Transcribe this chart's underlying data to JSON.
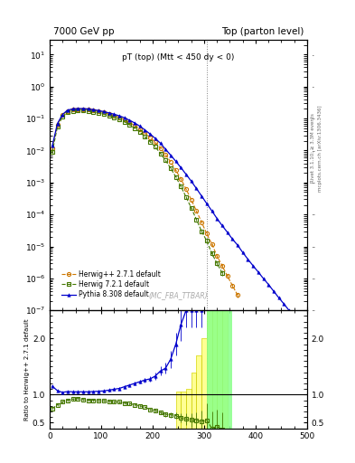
{
  "title_left": "7000 GeV pp",
  "title_right": "Top (parton level)",
  "main_title": "pT (top) (Mtt < 450 dy < 0)",
  "watermark": "(MC_FBA_TTBAR)",
  "right_label1": "Rivet 3.1.10; ≥ 3.3M events",
  "right_label2": "mcplots.cern.ch [arXiv:1306.3436]",
  "ylabel_ratio": "Ratio to Herwig++ 2.7.1 default",
  "xlim": [
    0,
    500
  ],
  "ylim_main": [
    1e-07,
    30
  ],
  "ylim_ratio": [
    0.4,
    2.5
  ],
  "ratio_yticks": [
    0.5,
    1.0,
    2.0
  ],
  "herwig1_x": [
    5,
    15,
    25,
    35,
    45,
    55,
    65,
    75,
    85,
    95,
    105,
    115,
    125,
    135,
    145,
    155,
    165,
    175,
    185,
    195,
    205,
    215,
    225,
    235,
    245,
    255,
    265,
    275,
    285,
    295,
    305,
    315,
    325,
    335,
    345,
    355,
    365
  ],
  "herwig1_y": [
    0.012,
    0.065,
    0.13,
    0.175,
    0.19,
    0.195,
    0.195,
    0.19,
    0.18,
    0.168,
    0.155,
    0.14,
    0.125,
    0.11,
    0.093,
    0.076,
    0.061,
    0.047,
    0.035,
    0.026,
    0.018,
    0.012,
    0.0075,
    0.0044,
    0.0024,
    0.00128,
    0.00062,
    0.00029,
    0.00013,
    5.8e-05,
    2.5e-05,
    1.2e-05,
    5e-06,
    2.5e-06,
    1.2e-06,
    6e-07,
    3e-07
  ],
  "herwig1_yerr": [
    0.001,
    0.002,
    0.003,
    0.003,
    0.003,
    0.003,
    0.003,
    0.003,
    0.003,
    0.002,
    0.002,
    0.002,
    0.002,
    0.002,
    0.001,
    0.001,
    0.001,
    0.0008,
    0.0005,
    0.0004,
    0.0003,
    0.0002,
    0.00015,
    0.0001,
    6e-05,
    4e-05,
    2e-05,
    1e-05,
    5e-06,
    2.5e-06,
    2e-06,
    1e-06,
    5e-07,
    3e-07,
    1.5e-07,
    8e-08,
    4e-08
  ],
  "herwig2_x": [
    5,
    15,
    25,
    35,
    45,
    55,
    65,
    75,
    85,
    95,
    105,
    115,
    125,
    135,
    145,
    155,
    165,
    175,
    185,
    195,
    205,
    215,
    225,
    235,
    245,
    255,
    265,
    275,
    285,
    295,
    305,
    315,
    325,
    335
  ],
  "herwig2_y": [
    0.009,
    0.055,
    0.115,
    0.16,
    0.175,
    0.18,
    0.178,
    0.172,
    0.162,
    0.15,
    0.138,
    0.123,
    0.109,
    0.095,
    0.079,
    0.064,
    0.05,
    0.038,
    0.027,
    0.019,
    0.013,
    0.0082,
    0.0049,
    0.0028,
    0.0015,
    0.00075,
    0.00035,
    0.00016,
    7e-05,
    3e-05,
    1.5e-05,
    6e-06,
    3e-06,
    1.5e-06
  ],
  "herwig2_yerr": [
    0.001,
    0.002,
    0.003,
    0.003,
    0.003,
    0.003,
    0.003,
    0.003,
    0.003,
    0.002,
    0.002,
    0.002,
    0.002,
    0.002,
    0.001,
    0.001,
    0.001,
    0.0008,
    0.0005,
    0.0004,
    0.0003,
    0.0002,
    0.00015,
    0.0001,
    6e-05,
    4e-05,
    2e-05,
    1e-05,
    5e-06,
    2.5e-06,
    2e-06,
    1e-06,
    5e-07,
    3e-07
  ],
  "pythia_x": [
    5,
    15,
    25,
    35,
    45,
    55,
    65,
    75,
    85,
    95,
    105,
    115,
    125,
    135,
    145,
    155,
    165,
    175,
    185,
    195,
    205,
    215,
    225,
    235,
    245,
    255,
    265,
    275,
    285,
    295,
    305,
    315,
    325,
    335,
    345,
    355,
    365,
    375,
    385,
    395,
    405,
    415,
    425,
    435,
    445,
    455,
    465,
    475,
    485,
    495
  ],
  "pythia_y": [
    0.014,
    0.07,
    0.135,
    0.185,
    0.2,
    0.205,
    0.205,
    0.2,
    0.19,
    0.178,
    0.165,
    0.151,
    0.137,
    0.122,
    0.106,
    0.089,
    0.073,
    0.058,
    0.044,
    0.033,
    0.024,
    0.017,
    0.011,
    0.0072,
    0.0046,
    0.0029,
    0.0018,
    0.0011,
    0.00065,
    0.00038,
    0.00022,
    0.00013,
    7.5e-05,
    4.5e-05,
    2.8e-05,
    1.7e-05,
    1.1e-05,
    6.5e-06,
    4e-06,
    2.5e-06,
    1.6e-06,
    1e-06,
    6.5e-07,
    4e-07,
    2.5e-07,
    1.6e-07,
    1e-07,
    6e-08,
    3e-08,
    1e-08
  ],
  "pythia_yerr": [
    0.001,
    0.002,
    0.003,
    0.003,
    0.003,
    0.003,
    0.003,
    0.003,
    0.003,
    0.002,
    0.002,
    0.002,
    0.002,
    0.002,
    0.001,
    0.001,
    0.001,
    0.0008,
    0.0005,
    0.0004,
    0.0003,
    0.0002,
    0.00015,
    0.0001,
    6e-05,
    4e-05,
    2e-05,
    1e-05,
    5e-06,
    2.5e-06,
    2e-06,
    1e-06,
    5e-07,
    3e-07,
    2e-07,
    1.5e-07,
    1e-07,
    8e-08,
    6e-08,
    5e-08,
    4e-08,
    3e-08,
    2.5e-08,
    2e-08,
    1.5e-08,
    1.2e-08,
    1e-08,
    8e-09,
    6e-09,
    5e-09
  ],
  "ratio_herwig2_x": [
    5,
    15,
    25,
    35,
    45,
    55,
    65,
    75,
    85,
    95,
    105,
    115,
    125,
    135,
    145,
    155,
    165,
    175,
    185,
    195,
    205,
    215,
    225,
    235,
    245,
    255,
    265,
    275,
    285,
    295,
    305,
    315,
    325,
    335
  ],
  "ratio_herwig2_y": [
    0.75,
    0.82,
    0.87,
    0.9,
    0.92,
    0.93,
    0.91,
    0.9,
    0.9,
    0.89,
    0.89,
    0.88,
    0.87,
    0.87,
    0.85,
    0.84,
    0.82,
    0.8,
    0.78,
    0.73,
    0.72,
    0.68,
    0.65,
    0.64,
    0.625,
    0.585,
    0.565,
    0.55,
    0.54,
    0.52,
    0.54,
    0.4,
    0.43,
    0.38
  ],
  "ratio_herwig2_yerr": [
    0.02,
    0.02,
    0.02,
    0.02,
    0.02,
    0.02,
    0.02,
    0.02,
    0.02,
    0.02,
    0.02,
    0.02,
    0.02,
    0.02,
    0.02,
    0.02,
    0.02,
    0.02,
    0.02,
    0.02,
    0.03,
    0.03,
    0.04,
    0.05,
    0.06,
    0.08,
    0.1,
    0.12,
    0.15,
    0.2,
    0.3,
    0.3,
    0.3,
    0.3
  ],
  "ratio_pythia_x": [
    5,
    15,
    25,
    35,
    45,
    55,
    65,
    75,
    85,
    95,
    105,
    115,
    125,
    135,
    145,
    155,
    165,
    175,
    185,
    195,
    205,
    215,
    225,
    235,
    245,
    255,
    265,
    275,
    285,
    295
  ],
  "ratio_pythia_y": [
    1.15,
    1.07,
    1.04,
    1.055,
    1.05,
    1.05,
    1.05,
    1.05,
    1.055,
    1.06,
    1.065,
    1.08,
    1.095,
    1.11,
    1.14,
    1.17,
    1.2,
    1.23,
    1.26,
    1.28,
    1.33,
    1.42,
    1.47,
    1.63,
    1.9,
    2.25,
    2.5,
    2.5,
    2.5,
    2.5
  ],
  "ratio_pythia_yerr": [
    0.02,
    0.02,
    0.02,
    0.02,
    0.02,
    0.02,
    0.02,
    0.02,
    0.02,
    0.02,
    0.02,
    0.02,
    0.02,
    0.02,
    0.02,
    0.02,
    0.03,
    0.03,
    0.04,
    0.05,
    0.06,
    0.08,
    0.1,
    0.15,
    0.2,
    0.3,
    0.3,
    0.3,
    0.3,
    0.3
  ],
  "band_yellow_xedges": [
    245,
    255,
    265,
    275,
    285,
    295,
    305,
    315,
    325,
    335,
    345
  ],
  "band_yellow_low": [
    0.4,
    0.4,
    0.4,
    0.4,
    0.4,
    0.4,
    0.4,
    0.4,
    0.4,
    0.4,
    0.4
  ],
  "band_yellow_high": [
    1.05,
    1.05,
    1.1,
    1.4,
    1.7,
    2.0,
    2.5,
    2.5,
    2.5,
    2.5,
    2.5
  ],
  "band_green_xedges": [
    305,
    315,
    325,
    335,
    345,
    355
  ],
  "band_green_low": [
    0.4,
    0.4,
    0.4,
    0.4,
    0.4,
    0.4
  ],
  "band_green_high": [
    2.5,
    2.5,
    2.5,
    2.5,
    2.5,
    2.5
  ],
  "vline_x": 305
}
